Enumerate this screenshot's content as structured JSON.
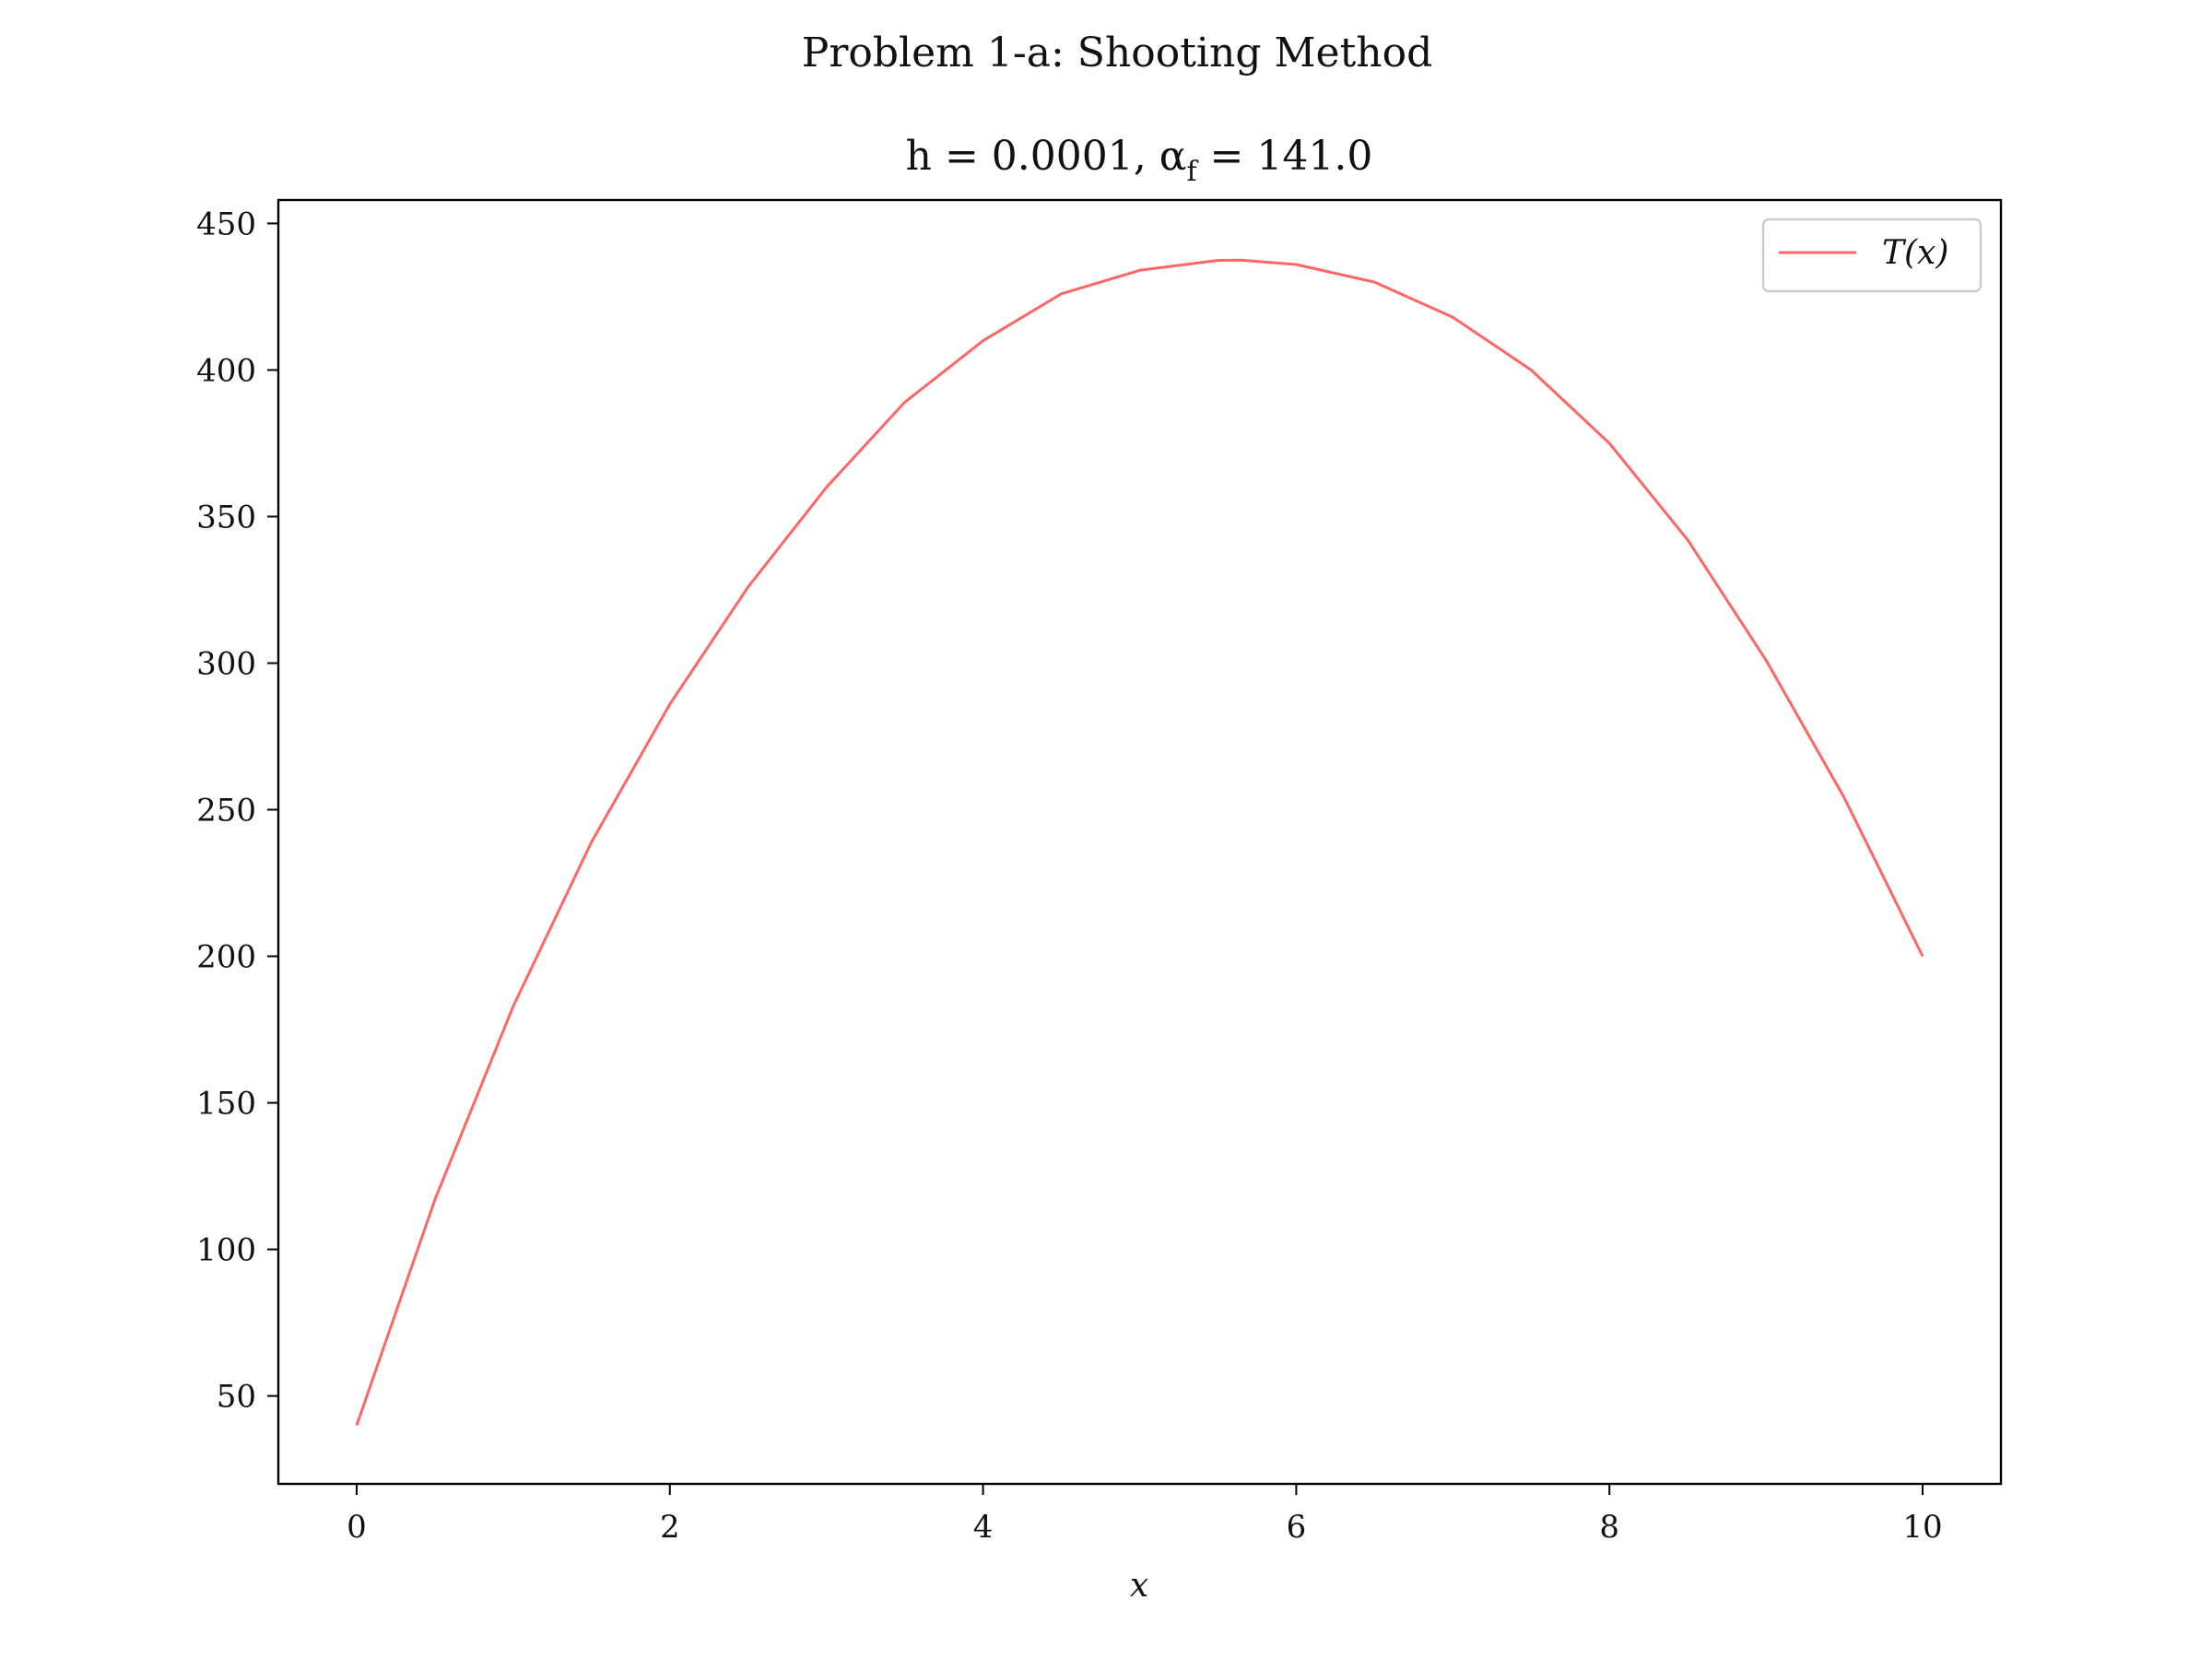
{
  "figure": {
    "suptitle": "Problem 1-a: Shooting Method",
    "subtitle": {
      "lead": "h = 0.0001, α",
      "sub": "f",
      "tail": " = 141.0"
    }
  },
  "chart_data": {
    "type": "line",
    "title": "Problem 1-a: Shooting Method",
    "subtitle": "h = 0.0001, α_f = 141.0",
    "xlabel": "x",
    "ylabel": "",
    "xlim": [
      -0.5,
      10.5
    ],
    "ylim": [
      20,
      458
    ],
    "x_ticks": [
      0,
      2,
      4,
      6,
      8,
      10
    ],
    "y_ticks": [
      50,
      100,
      150,
      200,
      250,
      300,
      350,
      400,
      450
    ],
    "x_tick_labels": [
      "0",
      "2",
      "4",
      "6",
      "8",
      "10"
    ],
    "y_tick_labels": [
      "50",
      "100",
      "150",
      "200",
      "250",
      "300",
      "350",
      "400",
      "450"
    ],
    "grid": false,
    "legend_position": "top-right",
    "series": [
      {
        "name": "T(x)",
        "color": "#ff6666",
        "x": [
          0,
          0.5,
          1,
          1.5,
          2,
          2.5,
          3,
          3.5,
          4,
          4.5,
          5,
          5.5,
          5.65,
          6,
          6.5,
          7,
          7.5,
          8,
          8.5,
          9,
          9.5,
          10
        ],
        "y": [
          40,
          117,
          183,
          239,
          286,
          326,
          360,
          389,
          410,
          426,
          434,
          437.4,
          437.5,
          436,
          430,
          418,
          400,
          375,
          342,
          301,
          254,
          200
        ]
      }
    ]
  }
}
